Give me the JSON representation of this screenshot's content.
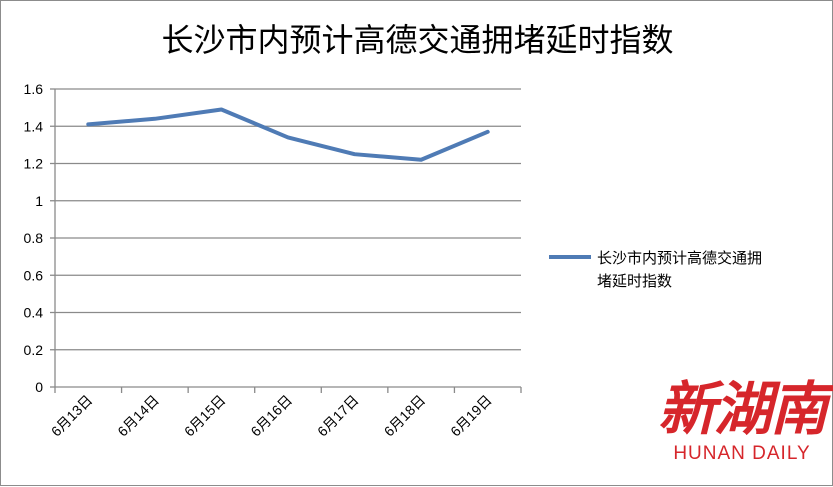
{
  "chart_data": {
    "type": "line",
    "title": "长沙市内预计高德交通拥堵延时指数",
    "categories": [
      "6月13日",
      "6月14日",
      "6月15日",
      "6月16日",
      "6月17日",
      "6月18日",
      "6月19日"
    ],
    "series": [
      {
        "name": "长沙市内预计高德交通拥堵延时指数",
        "values": [
          1.41,
          1.44,
          1.49,
          1.34,
          1.25,
          1.22,
          1.37
        ],
        "color": "#4f7bb5"
      }
    ],
    "ylim": [
      0,
      1.6
    ],
    "yticks": [
      "0",
      "0.2",
      "0.4",
      "0.6",
      "0.8",
      "1",
      "1.2",
      "1.4",
      "1.6"
    ],
    "grid": true,
    "legend_position": "right"
  },
  "legend": {
    "line1": "长沙市内预计高德交通拥",
    "line2": "堵延时指数"
  },
  "watermark": {
    "logo": "新湖南",
    "subtitle": "HUNAN DAILY"
  }
}
